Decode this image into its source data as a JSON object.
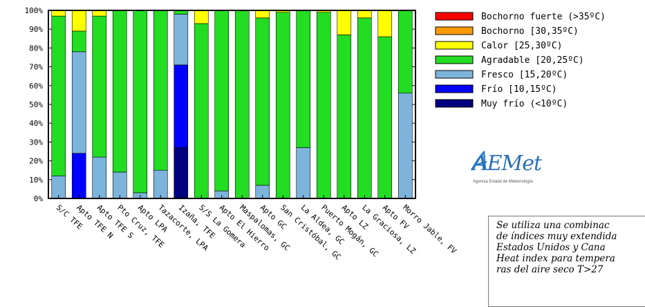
{
  "chart_data": {
    "type": "bar",
    "stacked": true,
    "categories": [
      "S/C TFE",
      "Apto TFE N",
      "Apto TFE S",
      "Pto Cruz, TFE",
      "Apto LPA",
      "Tazacorte, LPA",
      "Izaña, TFE",
      "S/S La Gomera",
      "Apto El Hierro",
      "Maspalomas, GC",
      "Apto GC",
      "San Cristóbal, GC",
      "La Aldea, GC",
      "Puerto Mogán, GC",
      "Apto LZ",
      "La Graciosa, LZ",
      "Apto FV",
      "Morro Jable, FV"
    ],
    "series": [
      {
        "name": "Muy frío (<10ºC)",
        "color": "#000080",
        "values": [
          0,
          0,
          0,
          0,
          0,
          0,
          27,
          0,
          0,
          0,
          0,
          0,
          0,
          0,
          0,
          0,
          0,
          0
        ]
      },
      {
        "name": "Frío [10,15ºC)",
        "color": "#0000ff",
        "values": [
          0,
          24,
          0,
          0,
          0,
          0,
          44,
          0,
          0,
          0,
          0,
          0,
          0,
          0,
          0,
          0,
          0,
          0
        ]
      },
      {
        "name": "Fresco [15,20ºC)",
        "color": "#7db4dc",
        "values": [
          12,
          54,
          22,
          14,
          3,
          15,
          27,
          0,
          4,
          0,
          7,
          0,
          27,
          0,
          0,
          0,
          0,
          56
        ]
      },
      {
        "name": "Agradable [20,25ºC)",
        "color": "#22dd22",
        "values": [
          85,
          11,
          75,
          86,
          97,
          85,
          2,
          93,
          96,
          100,
          89,
          99,
          73,
          99,
          87,
          96,
          86,
          44
        ]
      },
      {
        "name": "Calor [25,30ºC)",
        "color": "#ffff00",
        "values": [
          3,
          11,
          3,
          0,
          0,
          0,
          0,
          7,
          0,
          0,
          4,
          1,
          0,
          1,
          13,
          4,
          14,
          0
        ]
      },
      {
        "name": "Bochorno [30,35ºC)",
        "color": "#ff9900",
        "values": [
          0,
          0,
          0,
          0,
          0,
          0,
          0,
          0,
          0,
          0,
          0,
          0,
          0,
          0,
          0,
          0,
          0,
          0
        ]
      },
      {
        "name": "Bochorno fuerte (>35ºC)",
        "color": "#ff0000",
        "values": [
          0,
          0,
          0,
          0,
          0,
          0,
          0,
          0,
          0,
          0,
          0,
          0,
          0,
          0,
          0,
          0,
          0,
          0
        ]
      }
    ],
    "y_ticks": [
      "0%",
      "10%",
      "20%",
      "30%",
      "40%",
      "50%",
      "60%",
      "70%",
      "80%",
      "90%",
      "100%"
    ],
    "ylim": [
      0,
      100
    ],
    "legend_order": [
      "Bochorno fuerte (>35ºC)",
      "Bochorno [30,35ºC)",
      "Calor [25,30ºC)",
      "Agradable [20,25ºC)",
      "Fresco [15,20ºC)",
      "Frío [10,15ºC)",
      "Muy frío (<10ºC)"
    ],
    "legend_position": "right",
    "grid": false
  },
  "note": {
    "text": "Se utiliza una combinac\nde índices muy extendida\nEstados Unidos y Cana\nHeat index para tempera\nras del aire seco T>27"
  },
  "logo": {
    "name": "aemet-logo",
    "text": "AEMet",
    "subtitle": "Agencia Estatal de Meteorología"
  }
}
